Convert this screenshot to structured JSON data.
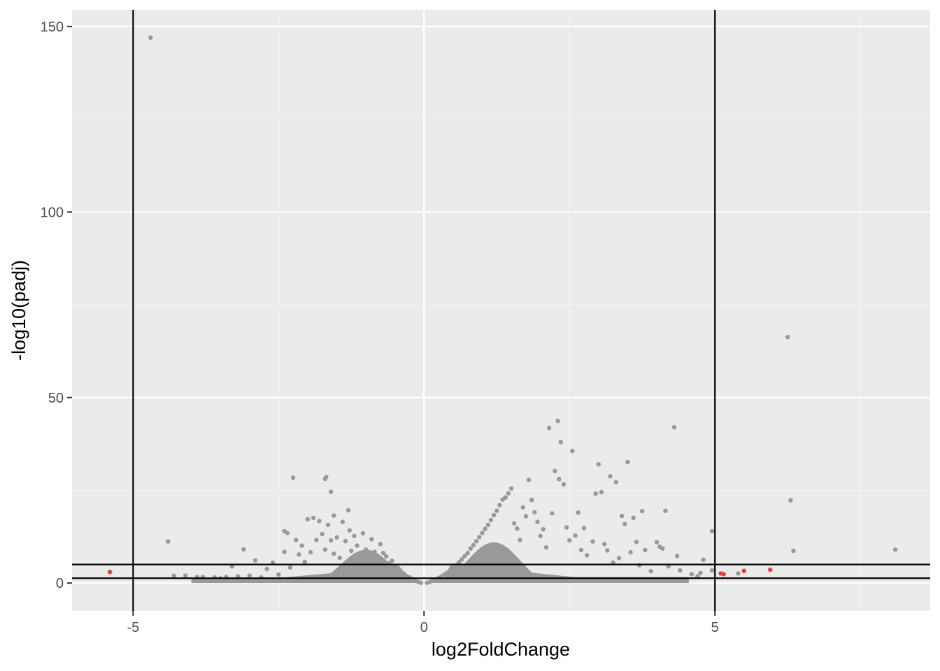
{
  "chart_data": {
    "type": "scatter",
    "title": "",
    "xlabel": "log2FoldChange",
    "ylabel": "-log10(padj)",
    "xlim": [
      -6.05,
      8.7
    ],
    "ylim": [
      -7.5,
      154.5
    ],
    "x_ticks": [
      -5,
      0,
      5
    ],
    "x_tick_labels": [
      "-5",
      "0",
      "5"
    ],
    "y_ticks": [
      0,
      50,
      100,
      150
    ],
    "y_tick_labels": [
      "0",
      "50",
      "100",
      "150"
    ],
    "grid": true,
    "legend": "none",
    "colors": {
      "panel_background": "#ebebeb",
      "grid_major": "#ffffff",
      "grid_minor": "#f4f4f4",
      "not_significant": "#999999",
      "significant": "#f03a3a",
      "threshold_lines": "#000000",
      "tick_label": "#4d4d4d"
    },
    "threshold_lines": {
      "vertical_x": [
        -5,
        5
      ],
      "horizontal_y": [
        1.3,
        5
      ]
    },
    "series": [
      {
        "color": "#f03a3a",
        "points": [
          [
            -5.4,
            3.0
          ],
          [
            5.1,
            2.6
          ],
          [
            5.15,
            2.4
          ],
          [
            5.5,
            3.3
          ],
          [
            5.95,
            3.6
          ]
        ]
      },
      {
        "color": "#999999",
        "points": [
          [
            -4.7,
            147
          ],
          [
            -4.4,
            11.2
          ],
          [
            -4.3,
            2.0
          ],
          [
            -4.1,
            2.0
          ],
          [
            -3.9,
            1.6
          ],
          [
            -3.8,
            1.6
          ],
          [
            -3.6,
            1.5
          ],
          [
            -3.5,
            1.3
          ],
          [
            -3.4,
            1.6
          ],
          [
            -3.3,
            4.5
          ],
          [
            -3.2,
            1.8
          ],
          [
            -3.1,
            9.1
          ],
          [
            -3.0,
            2.0
          ],
          [
            -2.9,
            6.1
          ],
          [
            -2.8,
            1.5
          ],
          [
            -2.7,
            3.8
          ],
          [
            -2.6,
            5.5
          ],
          [
            -2.5,
            2.3
          ],
          [
            -2.4,
            8.4
          ],
          [
            -2.4,
            14.0
          ],
          [
            -2.35,
            13.5
          ],
          [
            -2.3,
            4.2
          ],
          [
            -2.25,
            28.4
          ],
          [
            -2.2,
            11.6
          ],
          [
            -2.15,
            7.7
          ],
          [
            -2.1,
            10.1
          ],
          [
            -2.05,
            5.7
          ],
          [
            -2.0,
            17.2
          ],
          [
            -1.95,
            8.3
          ],
          [
            -1.9,
            17.6
          ],
          [
            -1.85,
            11.6
          ],
          [
            -1.8,
            16.7
          ],
          [
            -1.75,
            13.2
          ],
          [
            -1.7,
            9.0
          ],
          [
            -1.65,
            15.7
          ],
          [
            -1.6,
            11.5
          ],
          [
            -1.55,
            7.9
          ],
          [
            -1.7,
            28.1
          ],
          [
            -1.68,
            28.6
          ],
          [
            -1.6,
            24.6
          ],
          [
            -1.55,
            18.2
          ],
          [
            -1.5,
            12.3
          ],
          [
            -1.45,
            6.8
          ],
          [
            -1.4,
            16.5
          ],
          [
            -1.35,
            11.3
          ],
          [
            -1.3,
            19.6
          ],
          [
            -1.28,
            14.2
          ],
          [
            -1.25,
            8.7
          ],
          [
            -1.2,
            12.7
          ],
          [
            -1.15,
            10.1
          ],
          [
            -1.1,
            7.1
          ],
          [
            -1.05,
            13.4
          ],
          [
            -1.0,
            9.0
          ],
          [
            -0.95,
            6.2
          ],
          [
            -0.9,
            11.8
          ],
          [
            -0.85,
            8.4
          ],
          [
            -0.8,
            6.9
          ],
          [
            -0.75,
            10.5
          ],
          [
            -0.7,
            8.1
          ],
          [
            -0.65,
            7.2
          ],
          [
            -0.6,
            5.3
          ],
          [
            -0.55,
            6.0
          ],
          [
            -0.5,
            4.6
          ],
          [
            -0.45,
            4.1
          ],
          [
            -0.4,
            3.2
          ],
          [
            -0.35,
            2.6
          ],
          [
            -0.3,
            1.9
          ],
          [
            -0.25,
            1.5
          ],
          [
            -0.2,
            1.0
          ],
          [
            -0.15,
            0.6
          ],
          [
            -0.1,
            0.3
          ],
          [
            -0.05,
            0.1
          ],
          [
            0.05,
            0.1
          ],
          [
            0.1,
            0.3
          ],
          [
            0.15,
            0.7
          ],
          [
            0.2,
            1.0
          ],
          [
            0.25,
            1.4
          ],
          [
            0.3,
            1.8
          ],
          [
            0.35,
            2.3
          ],
          [
            0.4,
            2.8
          ],
          [
            0.45,
            3.3
          ],
          [
            0.5,
            4.0
          ],
          [
            0.55,
            4.8
          ],
          [
            0.6,
            5.6
          ],
          [
            0.65,
            6.4
          ],
          [
            0.7,
            7.3
          ],
          [
            0.75,
            8.1
          ],
          [
            0.8,
            9.3
          ],
          [
            0.85,
            10.2
          ],
          [
            0.9,
            11.3
          ],
          [
            0.95,
            12.4
          ],
          [
            1.0,
            13.5
          ],
          [
            1.05,
            14.6
          ],
          [
            1.1,
            15.7
          ],
          [
            1.15,
            17.0
          ],
          [
            1.2,
            18.3
          ],
          [
            1.25,
            19.5
          ],
          [
            1.3,
            21.0
          ],
          [
            1.35,
            22.5
          ],
          [
            1.4,
            23.1
          ],
          [
            1.45,
            24.2
          ],
          [
            1.5,
            25.5
          ],
          [
            1.55,
            16.1
          ],
          [
            1.6,
            14.7
          ],
          [
            1.65,
            11.6
          ],
          [
            1.7,
            20.4
          ],
          [
            1.75,
            18.0
          ],
          [
            1.8,
            27.8
          ],
          [
            1.85,
            22.4
          ],
          [
            1.9,
            19.1
          ],
          [
            1.95,
            16.5
          ],
          [
            2.0,
            12.7
          ],
          [
            2.05,
            14.5
          ],
          [
            2.1,
            9.6
          ],
          [
            2.15,
            41.8
          ],
          [
            2.2,
            18.8
          ],
          [
            2.25,
            30.2
          ],
          [
            2.3,
            43.7
          ],
          [
            2.32,
            28.0
          ],
          [
            2.35,
            38.0
          ],
          [
            2.4,
            26.6
          ],
          [
            2.45,
            15.0
          ],
          [
            2.5,
            11.5
          ],
          [
            2.55,
            35.6
          ],
          [
            2.6,
            12.8
          ],
          [
            2.65,
            19.0
          ],
          [
            2.7,
            8.9
          ],
          [
            2.75,
            14.8
          ],
          [
            2.8,
            7.5
          ],
          [
            2.9,
            11.2
          ],
          [
            2.95,
            24.1
          ],
          [
            3.0,
            32.0
          ],
          [
            3.05,
            24.5
          ],
          [
            3.1,
            10.5
          ],
          [
            3.15,
            8.8
          ],
          [
            3.2,
            28.8
          ],
          [
            3.25,
            5.5
          ],
          [
            3.3,
            27.2
          ],
          [
            3.35,
            6.7
          ],
          [
            3.4,
            18.1
          ],
          [
            3.45,
            15.9
          ],
          [
            3.5,
            32.6
          ],
          [
            3.55,
            8.3
          ],
          [
            3.6,
            17.6
          ],
          [
            3.65,
            11.1
          ],
          [
            3.7,
            4.8
          ],
          [
            3.75,
            19.4
          ],
          [
            3.8,
            8.9
          ],
          [
            3.9,
            3.2
          ],
          [
            4.0,
            11.0
          ],
          [
            4.05,
            9.8
          ],
          [
            4.1,
            9.3
          ],
          [
            4.15,
            19.5
          ],
          [
            4.2,
            4.5
          ],
          [
            4.3,
            42.0
          ],
          [
            4.35,
            7.3
          ],
          [
            4.4,
            3.4
          ],
          [
            4.6,
            2.4
          ],
          [
            4.7,
            1.8
          ],
          [
            4.75,
            2.7
          ],
          [
            4.8,
            6.3
          ],
          [
            4.95,
            14.0
          ],
          [
            4.95,
            3.4
          ],
          [
            5.4,
            2.6
          ],
          [
            6.25,
            66.3
          ],
          [
            6.3,
            22.3
          ],
          [
            6.35,
            8.7
          ],
          [
            8.1,
            9.0
          ]
        ]
      }
    ]
  }
}
